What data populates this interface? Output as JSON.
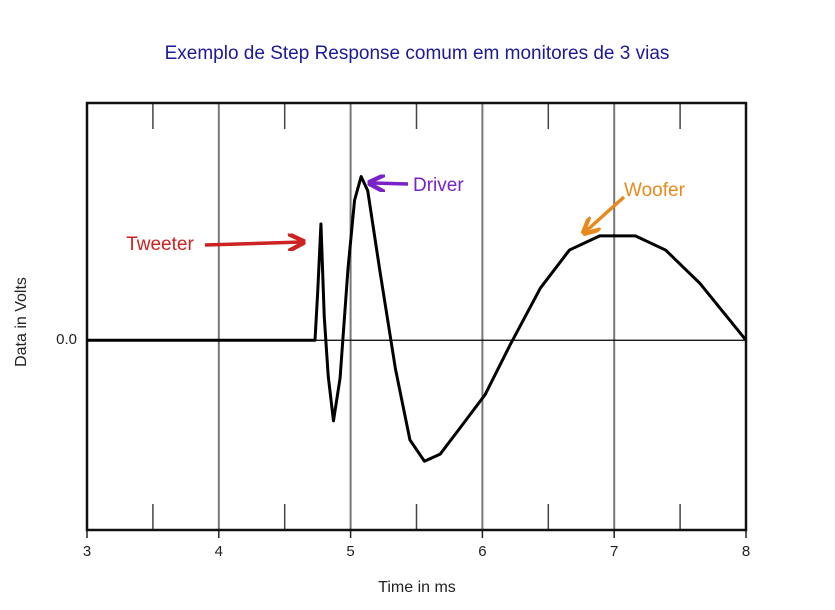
{
  "chart_data": {
    "type": "line",
    "title": "Exemplo de Step Response comum em monitores de 3 vias",
    "xlabel": "Time in ms",
    "ylabel": "Data in Volts",
    "xlim": [
      3,
      8
    ],
    "xticks": [
      3,
      4,
      5,
      6,
      7,
      8
    ],
    "xminorticks": [
      3.5,
      4.5,
      5.5,
      6.5,
      7.5
    ],
    "ylim": [
      -0.8,
      1.0
    ],
    "yticks": [
      {
        "value": 0,
        "label": "0.0"
      }
    ],
    "grid": "x",
    "series": [
      {
        "color": "#000000",
        "x": [
          3.0,
          4.73,
          4.75,
          4.775,
          4.8,
          4.83,
          4.87,
          4.92,
          4.98,
          5.03,
          5.08,
          5.13,
          5.22,
          5.34,
          5.45,
          5.56,
          5.68,
          5.83,
          6.02,
          6.21,
          6.44,
          6.66,
          6.89,
          7.16,
          7.39,
          7.65,
          8.0
        ],
        "values": [
          0,
          0,
          0.2,
          0.49,
          0.1,
          -0.15,
          -0.34,
          -0.16,
          0.3,
          0.59,
          0.69,
          0.63,
          0.3,
          -0.12,
          -0.42,
          -0.51,
          -0.48,
          -0.37,
          -0.23,
          -0.02,
          0.22,
          0.38,
          0.44,
          0.44,
          0.38,
          0.24,
          0
        ]
      }
    ],
    "annotations": [
      {
        "text": "Tweeter",
        "color": "#cc2222"
      },
      {
        "text": "Driver",
        "color": "#7a22c8"
      },
      {
        "text": "Woofer",
        "color": "#e8891e"
      }
    ]
  }
}
